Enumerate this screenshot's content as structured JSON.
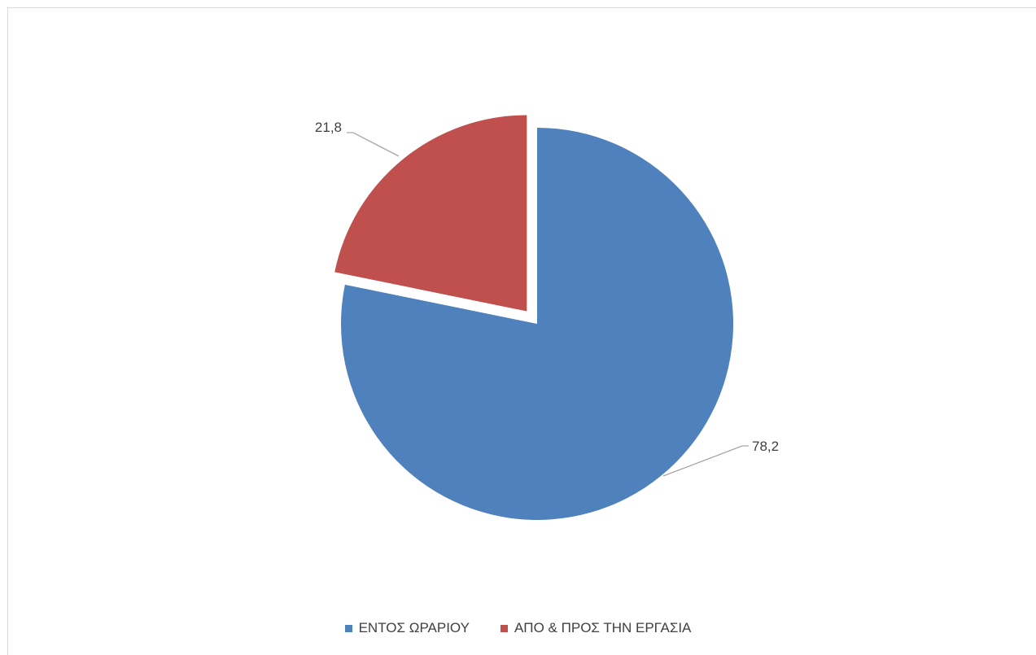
{
  "chart_data": {
    "type": "pie",
    "categories": [
      "ΕΝΤΟΣ ΩΡΑΡΙΟΥ",
      "ΑΠΟ & ΠΡΟΣ ΤΗΝ ΕΡΓΑΣΙΑ"
    ],
    "values": [
      78.2,
      21.8
    ],
    "data_labels": [
      "78,2",
      "21,8"
    ],
    "colors": [
      "#4f81bd",
      "#c0504d"
    ],
    "exploded": [
      false,
      true
    ],
    "start_angle": "12 o'clock, clockwise",
    "legend_position": "bottom",
    "title": ""
  }
}
